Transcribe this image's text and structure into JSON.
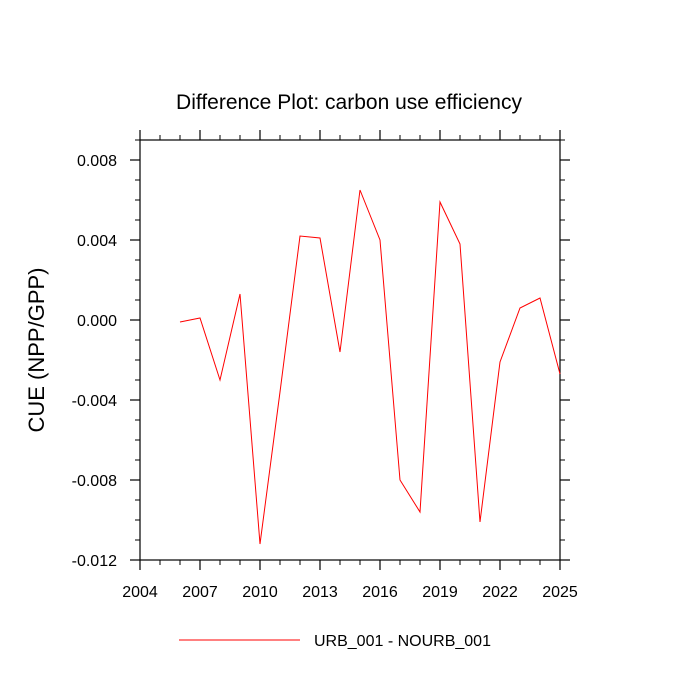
{
  "chart_data": {
    "type": "line",
    "title": "Difference Plot: carbon use efficiency",
    "xlabel": "",
    "ylabel": "CUE  (NPP/GPP)",
    "xlim": [
      2004,
      2025
    ],
    "ylim": [
      -0.012,
      0.009
    ],
    "xticks": [
      2004,
      2007,
      2010,
      2013,
      2016,
      2019,
      2022,
      2025
    ],
    "yticks": [
      -0.012,
      -0.008,
      -0.004,
      0.0,
      0.004,
      0.008
    ],
    "ytick_labels": [
      "-0.012",
      "-0.008",
      "-0.004",
      "0.000",
      "0.004",
      "0.008"
    ],
    "grid": false,
    "legend_position": "bottom-center",
    "series": [
      {
        "name": "URB_001 - NOURB_001",
        "color": "#ff0000",
        "x": [
          2006,
          2007,
          2008,
          2009,
          2010,
          2011,
          2012,
          2013,
          2014,
          2015,
          2016,
          2017,
          2018,
          2019,
          2020,
          2021,
          2022,
          2023,
          2024,
          2025
        ],
        "values": [
          -0.0001,
          0.0001,
          -0.003,
          0.0013,
          -0.0112,
          -0.0036,
          0.0042,
          0.0041,
          -0.0016,
          0.0065,
          0.004,
          -0.008,
          -0.0096,
          0.0059,
          0.0038,
          -0.0101,
          -0.0021,
          0.0006,
          0.0011,
          -0.0027
        ]
      }
    ]
  }
}
